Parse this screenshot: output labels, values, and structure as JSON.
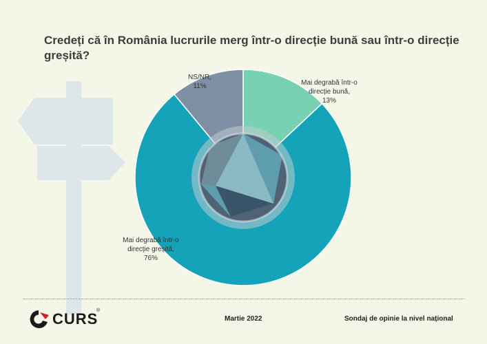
{
  "title": "Credeți că în România lucrurile merg într-o direcție bună sau într-o direcție greșită?",
  "chart_data": {
    "type": "pie",
    "title": "Credeți că în România lucrurile merg într-o direcție bună sau într-o direcție greșită?",
    "categories": [
      "Mai degrabă într-o direcție bună",
      "Mai degrabă într-o direcție greșită",
      "NS/NR"
    ],
    "values": [
      13,
      76,
      11
    ],
    "labels": [
      [
        "Mai degrabă într-o",
        "direcție bună,",
        "13%"
      ],
      [
        "Mai degrabă într-o",
        "direcție greșită,",
        "76%"
      ],
      [
        "NS/NR,",
        "11%"
      ]
    ],
    "colors": [
      "#79d1b3",
      "#14a3b8",
      "#7f8fa5"
    ],
    "legend": "none"
  },
  "footer": {
    "brand": "CURS",
    "registered": "®",
    "date": "Martie 2022",
    "note": "Sondaj de opinie la nivel național"
  }
}
